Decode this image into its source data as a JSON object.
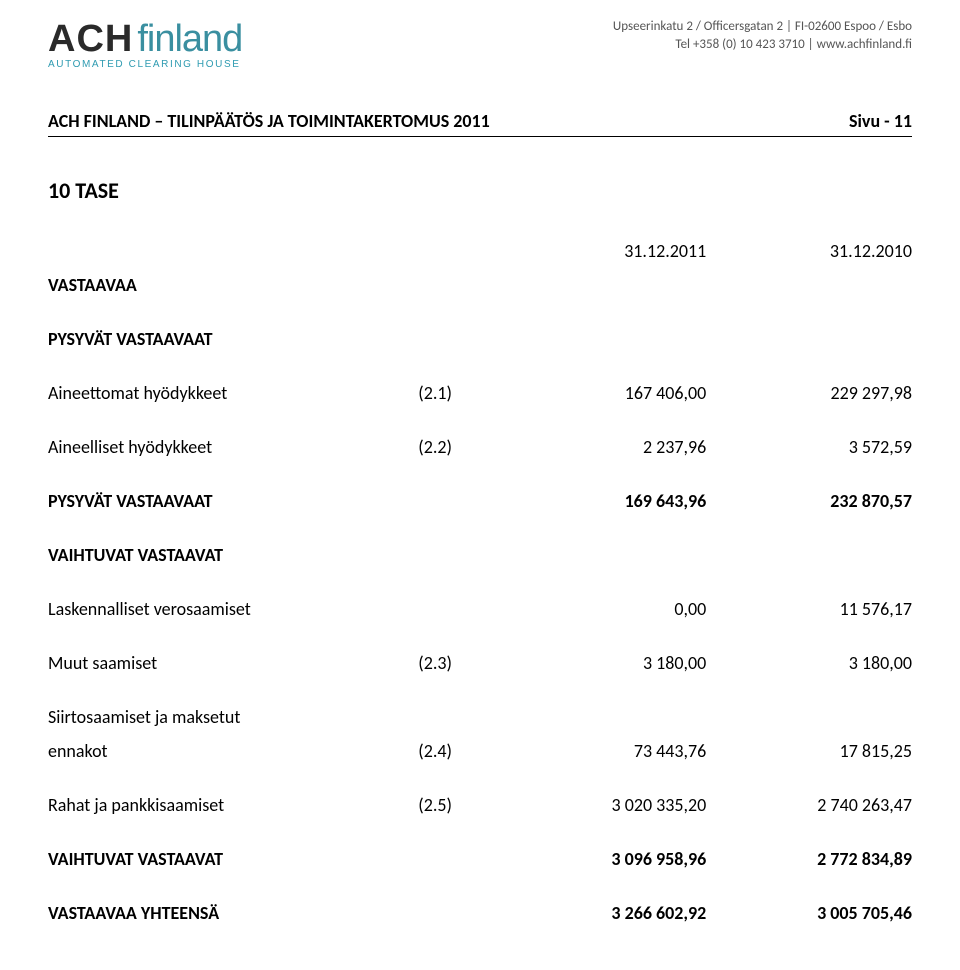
{
  "header": {
    "logo_ach": "ACH",
    "logo_finland": "finland",
    "logo_sub": "AUTOMATED CLEARING HOUSE",
    "contact_line1": "Upseerinkatu 2 / Officersgatan 2 | FI-02600 Espoo / Esbo",
    "contact_line2": "Tel +358 (0) 10 423 3710 | www.achfinland.fi"
  },
  "titlebar": {
    "left": "ACH FINLAND – TILINPÄÄTÖS JA TOIMINTAKERTOMUS 2011",
    "right": "Sivu - 11"
  },
  "section_heading": "10  TASE",
  "col_headers": {
    "c1": "31.12.2011",
    "c2": "31.12.2010"
  },
  "rows": {
    "vastaavaa": "VASTAAVAA",
    "pysyvat_h": "PYSYVÄT VASTAAVAAT",
    "aineettomat": {
      "label": "Aineettomat hyödykkeet",
      "note": "(2.1)",
      "v1": "167 406,00",
      "v2": "229 297,98"
    },
    "aineelliset": {
      "label": "Aineelliset hyödykkeet",
      "note": "(2.2)",
      "v1": "2 237,96",
      "v2": "3 572,59"
    },
    "pysyvat_sum": {
      "label": "PYSYVÄT VASTAAVAAT",
      "v1": "169 643,96",
      "v2": "232 870,57"
    },
    "vaihtuvat_h": "VAIHTUVAT VASTAAVAT",
    "laskennalliset": {
      "label": "Laskennalliset verosaamiset",
      "v1": "0,00",
      "v2": "11 576,17"
    },
    "muut": {
      "label": "Muut saamiset",
      "note": "(2.3)",
      "v1": "3 180,00",
      "v2": "3 180,00"
    },
    "siirto_l1": "Siirtosaamiset ja maksetut",
    "siirto": {
      "label": "ennakot",
      "note": "(2.4)",
      "v1": "73 443,76",
      "v2": "17 815,25"
    },
    "rahat": {
      "label": "Rahat ja pankkisaamiset",
      "note": "(2.5)",
      "v1": "3 020 335,20",
      "v2": "2 740 263,47"
    },
    "vaihtuvat_sum": {
      "label": "VAIHTUVAT VASTAAVAT",
      "v1": "3 096 958,96",
      "v2": "2 772 834,89"
    },
    "vastaavaa_sum": {
      "label": "VASTAAVAA YHTEENSÄ",
      "v1": "3 266 602,92",
      "v2": "3 005 705,46"
    }
  }
}
